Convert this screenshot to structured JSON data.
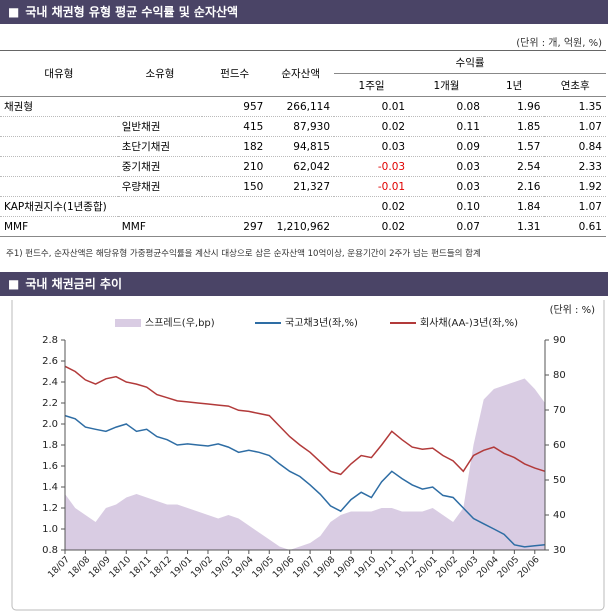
{
  "header": {
    "title": "국내 채권형 유형 평균 수익률 및 순자산액"
  },
  "table": {
    "unit": "(단위 : 개, 억원, %)",
    "columns": [
      "대유형",
      "소유형",
      "펀드수",
      "순자산액"
    ],
    "return_group": "수익률",
    "return_columns": [
      "1주일",
      "1개월",
      "1년",
      "연초후"
    ],
    "rows": [
      [
        "채권형",
        null,
        "957",
        "266,114",
        "0.01",
        "0.08",
        "1.96",
        "1.35"
      ],
      [
        null,
        "일반채권",
        "415",
        "87,930",
        "0.02",
        "0.11",
        "1.85",
        "1.07"
      ],
      [
        null,
        "초단기채권",
        "182",
        "94,815",
        "0.03",
        "0.09",
        "1.57",
        "0.84"
      ],
      [
        null,
        "중기채권",
        "210",
        "62,042",
        "-0.03",
        "0.03",
        "2.54",
        "2.33"
      ],
      [
        null,
        "우량채권",
        "150",
        "21,327",
        "-0.01",
        "0.03",
        "2.16",
        "1.92"
      ],
      [
        "KAP채권지수(1년종합)",
        null,
        null,
        null,
        "0.02",
        "0.10",
        "1.84",
        "1.07"
      ],
      [
        "MMF",
        "MMF",
        "297",
        "1,210,962",
        "0.02",
        "0.07",
        "1.31",
        "0.61"
      ]
    ]
  },
  "note": "주1) 펀드수, 순자산액은 해당유형 가중평균수익률을 계산시 대상으로 삼은 순자산액 10억이상, 운용기간이 2주가 넘는 펀드들의 합계",
  "chart_header": {
    "title": "국내 채권금리 추이"
  },
  "chart_data": {
    "type": "line",
    "unit": "(단위 : %)",
    "categories": [
      "18/07",
      null,
      "18/08",
      null,
      "18/09",
      null,
      "18/10",
      null,
      "18/11",
      null,
      "18/12",
      null,
      "19/01",
      null,
      "19/02",
      null,
      "19/03",
      null,
      "19/04",
      null,
      "19/05",
      null,
      "19/06",
      null,
      "19/07",
      null,
      "19/08",
      null,
      "19/09",
      null,
      "19/10",
      null,
      "19/11",
      null,
      "19/12",
      null,
      "20/01",
      null,
      "20/02",
      null,
      "20/03",
      null,
      "20/04",
      null,
      "20/05",
      null,
      "20/06",
      null
    ],
    "series": [
      {
        "name": "스프레드(우,bp)",
        "color": "#d9cce3",
        "kind": "area",
        "axis": "y2",
        "values": [
          46,
          42,
          40,
          38,
          42,
          43,
          45,
          46,
          45,
          44,
          43,
          43,
          42,
          41,
          40,
          39,
          40,
          39,
          37,
          35,
          33,
          31,
          30,
          31,
          32,
          34,
          38,
          40,
          41,
          41,
          41,
          42,
          42,
          41,
          41,
          41,
          42,
          40,
          38,
          42,
          60,
          73,
          76,
          77,
          78,
          79,
          76,
          72
        ]
      },
      {
        "name": "국고채3년(좌,%)",
        "color": "#2e6da4",
        "kind": "line",
        "values": [
          2.08,
          2.05,
          1.97,
          1.95,
          1.93,
          1.97,
          2.0,
          1.93,
          1.95,
          1.88,
          1.85,
          1.8,
          1.81,
          1.8,
          1.79,
          1.81,
          1.78,
          1.73,
          1.75,
          1.73,
          1.7,
          1.62,
          1.55,
          1.5,
          1.42,
          1.33,
          1.22,
          1.17,
          1.28,
          1.35,
          1.3,
          1.45,
          1.55,
          1.48,
          1.42,
          1.38,
          1.4,
          1.32,
          1.3,
          1.2,
          1.1,
          1.05,
          1.0,
          0.95,
          0.85,
          0.83,
          0.84,
          0.85
        ]
      },
      {
        "name": "회사채(AA-)3년(좌,%)",
        "color": "#b23a3a",
        "kind": "line",
        "values": [
          2.55,
          2.5,
          2.42,
          2.38,
          2.43,
          2.45,
          2.4,
          2.38,
          2.35,
          2.28,
          2.25,
          2.22,
          2.21,
          2.2,
          2.19,
          2.18,
          2.17,
          2.13,
          2.12,
          2.1,
          2.08,
          1.98,
          1.88,
          1.8,
          1.73,
          1.64,
          1.55,
          1.52,
          1.62,
          1.7,
          1.68,
          1.8,
          1.93,
          1.85,
          1.78,
          1.76,
          1.77,
          1.7,
          1.65,
          1.55,
          1.7,
          1.75,
          1.78,
          1.72,
          1.68,
          1.62,
          1.58,
          1.55
        ]
      }
    ],
    "ylim": [
      0.8,
      2.8
    ],
    "yticks": [
      0.8,
      {
        "value": 1,
        "label": "1.0"
      },
      1.2,
      1.4,
      1.6,
      1.8,
      {
        "value": 2,
        "label": "2.0"
      },
      2.2,
      2.4,
      2.6,
      2.8
    ],
    "y2lim": [
      30,
      90
    ],
    "y2ticks": [
      30,
      40,
      50,
      60,
      70,
      80,
      90
    ]
  }
}
